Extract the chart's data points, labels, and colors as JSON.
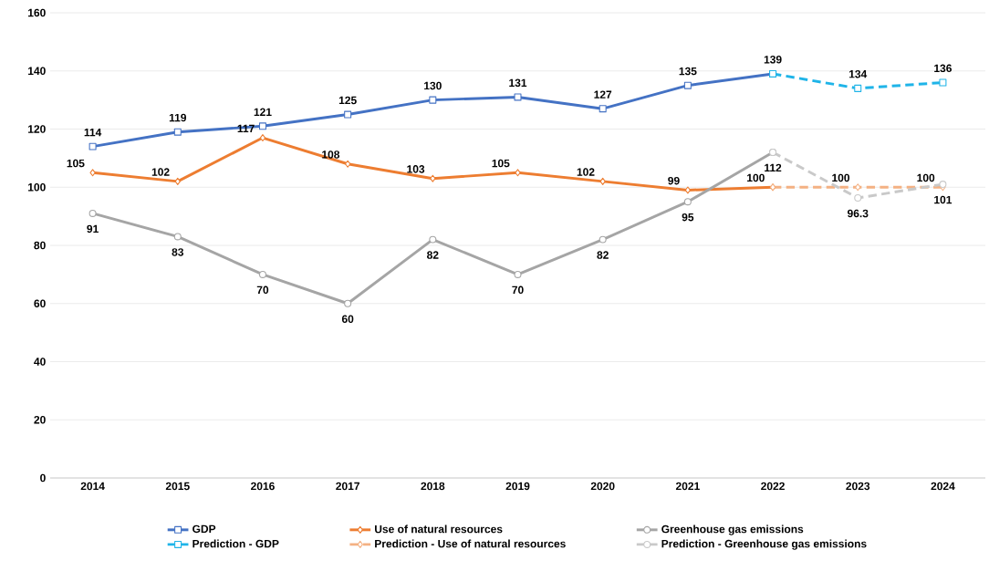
{
  "chart_data": {
    "type": "line",
    "categories": [
      "2014",
      "2015",
      "2016",
      "2017",
      "2018",
      "2019",
      "2020",
      "2021",
      "2022",
      "2023",
      "2024"
    ],
    "series": [
      {
        "name": "GDP",
        "color": "#4472c4",
        "marker": "square",
        "line_style": "solid",
        "values": [
          114,
          119,
          121,
          125,
          130,
          131,
          127,
          135,
          139,
          null,
          null
        ],
        "value_labels": [
          "114",
          "119",
          "121",
          "125",
          "130",
          "131",
          "127",
          "135",
          "139",
          null,
          null
        ]
      },
      {
        "name": "Use of natural resources",
        "color": "#ed7d31",
        "marker": "diamond",
        "line_style": "solid",
        "values": [
          105,
          102,
          117,
          108,
          103,
          105,
          102,
          99,
          100,
          null,
          null
        ],
        "value_labels": [
          "105",
          "102",
          "117",
          "108",
          "103",
          "105",
          "102",
          "99",
          "100",
          null,
          null
        ]
      },
      {
        "name": "Greenhouse gas emissions",
        "color": "#a5a5a5",
        "marker": "circle",
        "line_style": "solid",
        "values": [
          91,
          83,
          70,
          60,
          82,
          70,
          82,
          95,
          112,
          null,
          null
        ],
        "value_labels": [
          "91",
          "83",
          "70",
          "60",
          "82",
          "70",
          "82",
          "95",
          "112",
          null,
          null
        ]
      },
      {
        "name": "Prediction - GDP",
        "color": "#1fb4e8",
        "marker": "square",
        "line_style": "dashed",
        "values": [
          null,
          null,
          null,
          null,
          null,
          null,
          null,
          null,
          139,
          134,
          136
        ],
        "value_labels": [
          null,
          null,
          null,
          null,
          null,
          null,
          null,
          null,
          null,
          "134",
          "136"
        ]
      },
      {
        "name": "Prediction - Use of natural resources",
        "color": "#f4b183",
        "marker": "diamond",
        "line_style": "dashed",
        "values": [
          null,
          null,
          null,
          null,
          null,
          null,
          null,
          null,
          100,
          100,
          100
        ],
        "value_labels": [
          null,
          null,
          null,
          null,
          null,
          null,
          null,
          null,
          null,
          "100",
          "100"
        ]
      },
      {
        "name": "Prediction - Greenhouse gas emissions",
        "color": "#c9c9c9",
        "marker": "circle",
        "line_style": "dashed",
        "values": [
          null,
          null,
          null,
          null,
          null,
          null,
          null,
          null,
          112,
          96.3,
          101
        ],
        "value_labels": [
          null,
          null,
          null,
          null,
          null,
          null,
          null,
          null,
          null,
          "96.3",
          "101"
        ]
      }
    ],
    "ylim": [
      0,
      160
    ],
    "yticks": [
      0,
      20,
      40,
      60,
      80,
      100,
      120,
      140,
      160
    ],
    "grid": "y",
    "legend": "bottom"
  }
}
